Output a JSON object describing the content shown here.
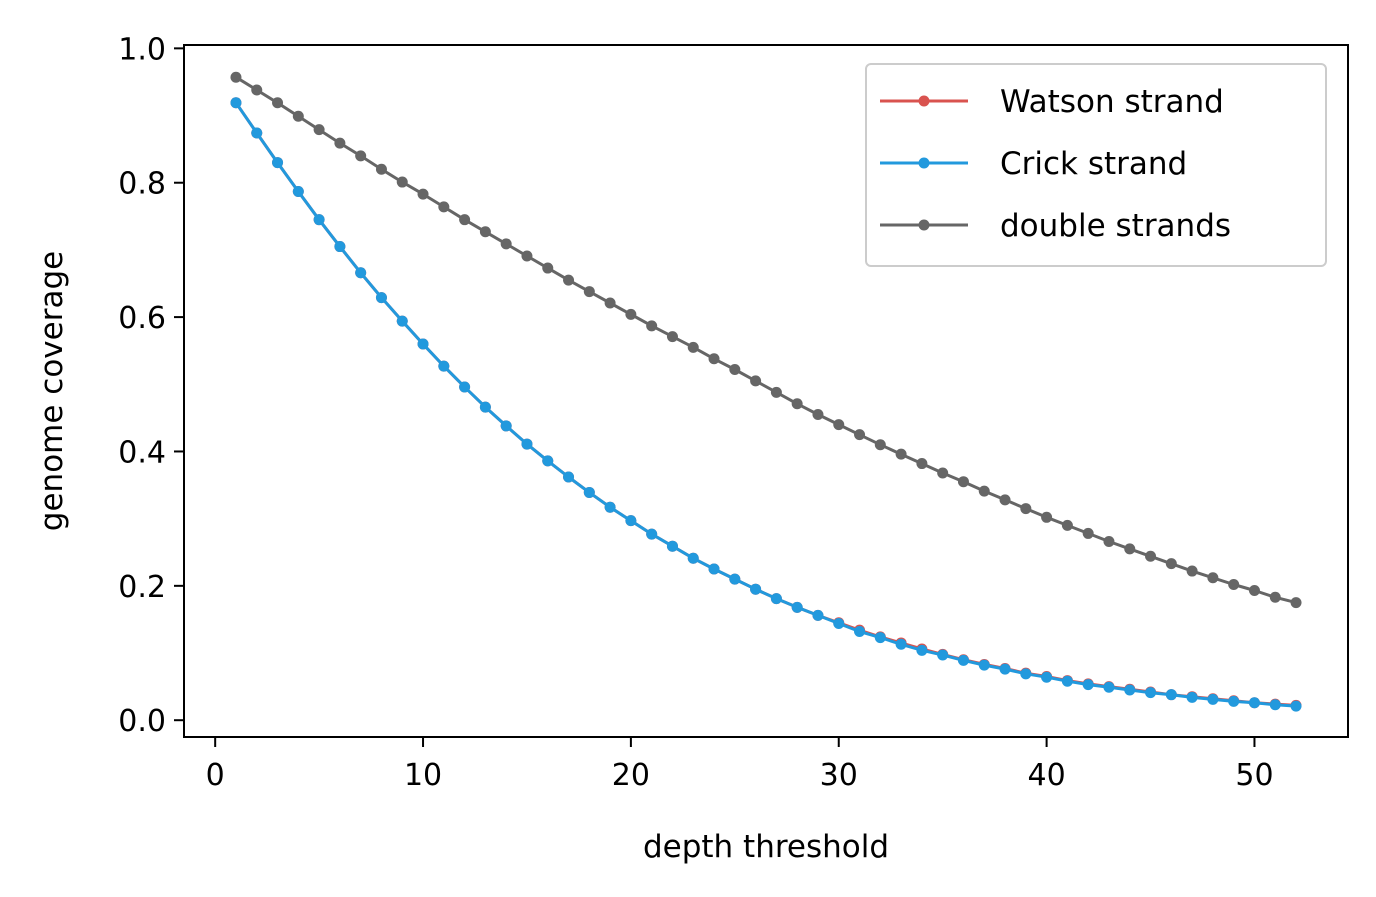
{
  "chart_data": {
    "type": "line",
    "title": "",
    "xlabel": "depth threshold",
    "ylabel": "genome coverage",
    "xlim": [
      -1.5,
      54.5
    ],
    "ylim": [
      -0.025,
      1.005
    ],
    "xticks": [
      0,
      10,
      20,
      30,
      40,
      50
    ],
    "xtick_labels": [
      "0",
      "10",
      "20",
      "30",
      "40",
      "50"
    ],
    "yticks": [
      0.0,
      0.2,
      0.4,
      0.6,
      0.8,
      1.0
    ],
    "ytick_labels": [
      "0.0",
      "0.2",
      "0.4",
      "0.6",
      "0.8",
      "1.0"
    ],
    "grid": false,
    "legend_position": "top-right",
    "x": [
      1,
      2,
      3,
      4,
      5,
      6,
      7,
      8,
      9,
      10,
      11,
      12,
      13,
      14,
      15,
      16,
      17,
      18,
      19,
      20,
      21,
      22,
      23,
      24,
      25,
      26,
      27,
      28,
      29,
      30,
      31,
      32,
      33,
      34,
      35,
      36,
      37,
      38,
      39,
      40,
      41,
      42,
      43,
      44,
      45,
      46,
      47,
      48,
      49,
      50,
      51,
      52
    ],
    "series": [
      {
        "name": "Watson strand",
        "color": "#d9534f",
        "values": [
          0.919,
          0.874,
          0.83,
          0.787,
          0.745,
          0.705,
          0.666,
          0.629,
          0.594,
          0.56,
          0.527,
          0.496,
          0.466,
          0.438,
          0.411,
          0.386,
          0.362,
          0.339,
          0.317,
          0.297,
          0.277,
          0.259,
          0.241,
          0.225,
          0.21,
          0.195,
          0.181,
          0.168,
          0.156,
          0.145,
          0.134,
          0.124,
          0.115,
          0.106,
          0.098,
          0.09,
          0.083,
          0.077,
          0.07,
          0.065,
          0.059,
          0.054,
          0.05,
          0.046,
          0.042,
          0.038,
          0.035,
          0.032,
          0.029,
          0.026,
          0.024,
          0.022
        ]
      },
      {
        "name": "Crick strand",
        "color": "#2299dd",
        "values": [
          0.919,
          0.874,
          0.83,
          0.787,
          0.745,
          0.705,
          0.666,
          0.629,
          0.594,
          0.56,
          0.527,
          0.496,
          0.466,
          0.438,
          0.411,
          0.386,
          0.362,
          0.339,
          0.317,
          0.297,
          0.277,
          0.259,
          0.241,
          0.225,
          0.21,
          0.195,
          0.181,
          0.168,
          0.156,
          0.144,
          0.132,
          0.123,
          0.113,
          0.104,
          0.097,
          0.089,
          0.082,
          0.076,
          0.069,
          0.064,
          0.058,
          0.053,
          0.049,
          0.045,
          0.041,
          0.038,
          0.034,
          0.031,
          0.028,
          0.026,
          0.023,
          0.021
        ]
      },
      {
        "name": "double strands",
        "color": "#666666",
        "values": [
          0.957,
          0.938,
          0.919,
          0.899,
          0.879,
          0.859,
          0.84,
          0.82,
          0.801,
          0.783,
          0.764,
          0.745,
          0.727,
          0.709,
          0.691,
          0.673,
          0.655,
          0.638,
          0.621,
          0.604,
          0.587,
          0.571,
          0.555,
          0.538,
          0.522,
          0.505,
          0.488,
          0.471,
          0.455,
          0.44,
          0.425,
          0.41,
          0.396,
          0.382,
          0.368,
          0.355,
          0.341,
          0.328,
          0.315,
          0.302,
          0.29,
          0.278,
          0.266,
          0.255,
          0.244,
          0.233,
          0.222,
          0.212,
          0.202,
          0.193,
          0.183,
          0.175
        ]
      }
    ]
  }
}
